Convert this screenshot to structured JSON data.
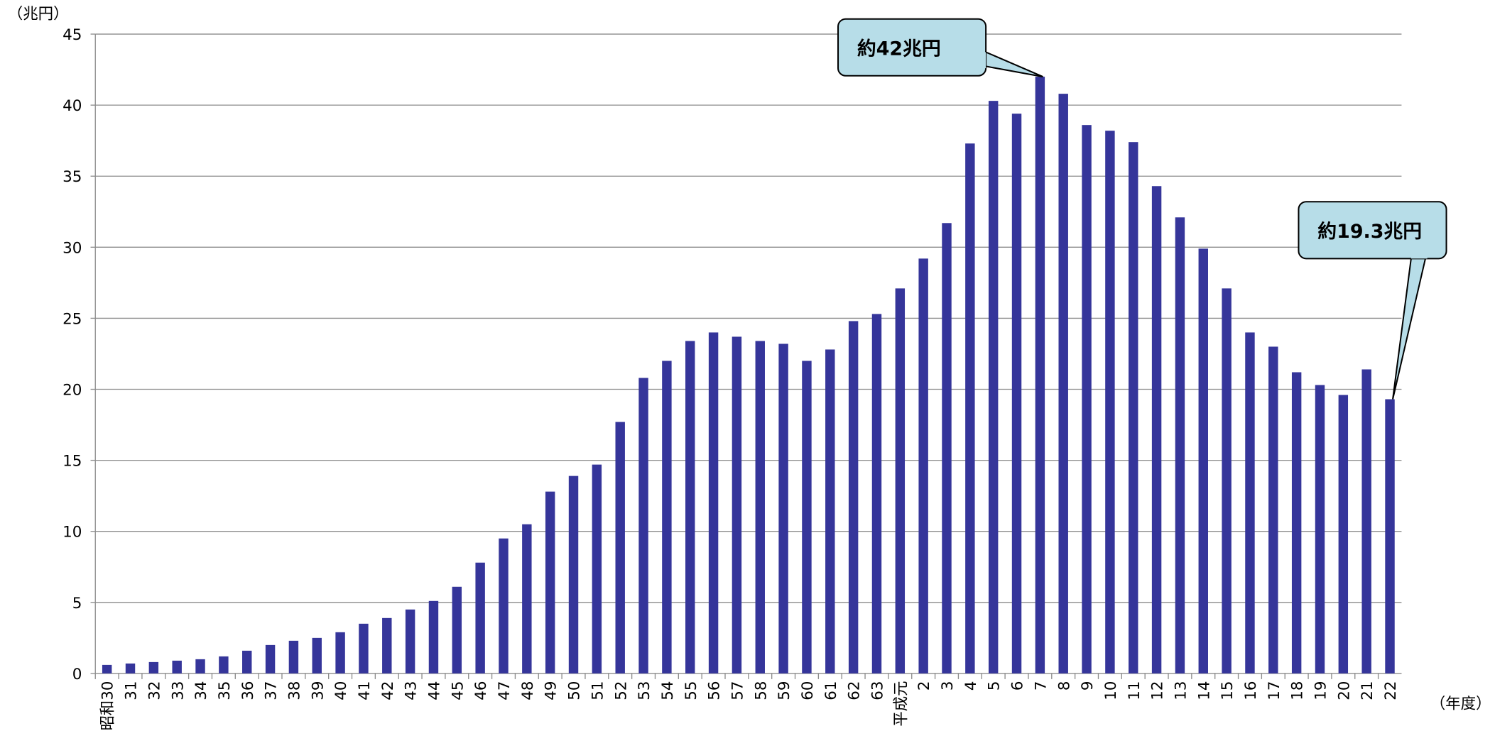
{
  "chart_data": {
    "type": "bar",
    "y_unit": "（兆円）",
    "x_unit": "（年度）",
    "categories": [
      "昭和30",
      "31",
      "32",
      "33",
      "34",
      "35",
      "36",
      "37",
      "38",
      "39",
      "40",
      "41",
      "42",
      "43",
      "44",
      "45",
      "46",
      "47",
      "48",
      "49",
      "50",
      "51",
      "52",
      "53",
      "54",
      "55",
      "56",
      "57",
      "58",
      "59",
      "60",
      "61",
      "62",
      "63",
      "平成元",
      "2",
      "3",
      "4",
      "5",
      "6",
      "7",
      "8",
      "9",
      "10",
      "11",
      "12",
      "13",
      "14",
      "15",
      "16",
      "17",
      "18",
      "19",
      "20",
      "21",
      "22"
    ],
    "values": [
      0.6,
      0.7,
      0.8,
      0.9,
      1.0,
      1.2,
      1.6,
      2.0,
      2.3,
      2.5,
      2.9,
      3.5,
      3.9,
      4.5,
      5.1,
      6.1,
      7.8,
      9.5,
      10.5,
      12.8,
      13.9,
      14.7,
      17.7,
      20.8,
      22.0,
      23.4,
      24.0,
      23.7,
      23.4,
      23.2,
      22.0,
      22.8,
      24.8,
      25.3,
      27.1,
      29.2,
      31.7,
      37.3,
      40.3,
      39.4,
      42.0,
      40.8,
      38.6,
      38.2,
      37.4,
      34.3,
      32.1,
      29.9,
      27.1,
      24.0,
      23.0,
      21.2,
      20.3,
      19.6,
      21.4,
      19.3
    ],
    "color": "#35359a",
    "ylim": [
      0,
      45
    ],
    "yticks": [
      0,
      5,
      10,
      15,
      20,
      25,
      30,
      35,
      40,
      45
    ],
    "grid": true,
    "annotations": [
      {
        "text": "約42兆円"
      },
      {
        "text": "約19.3兆円"
      }
    ]
  }
}
